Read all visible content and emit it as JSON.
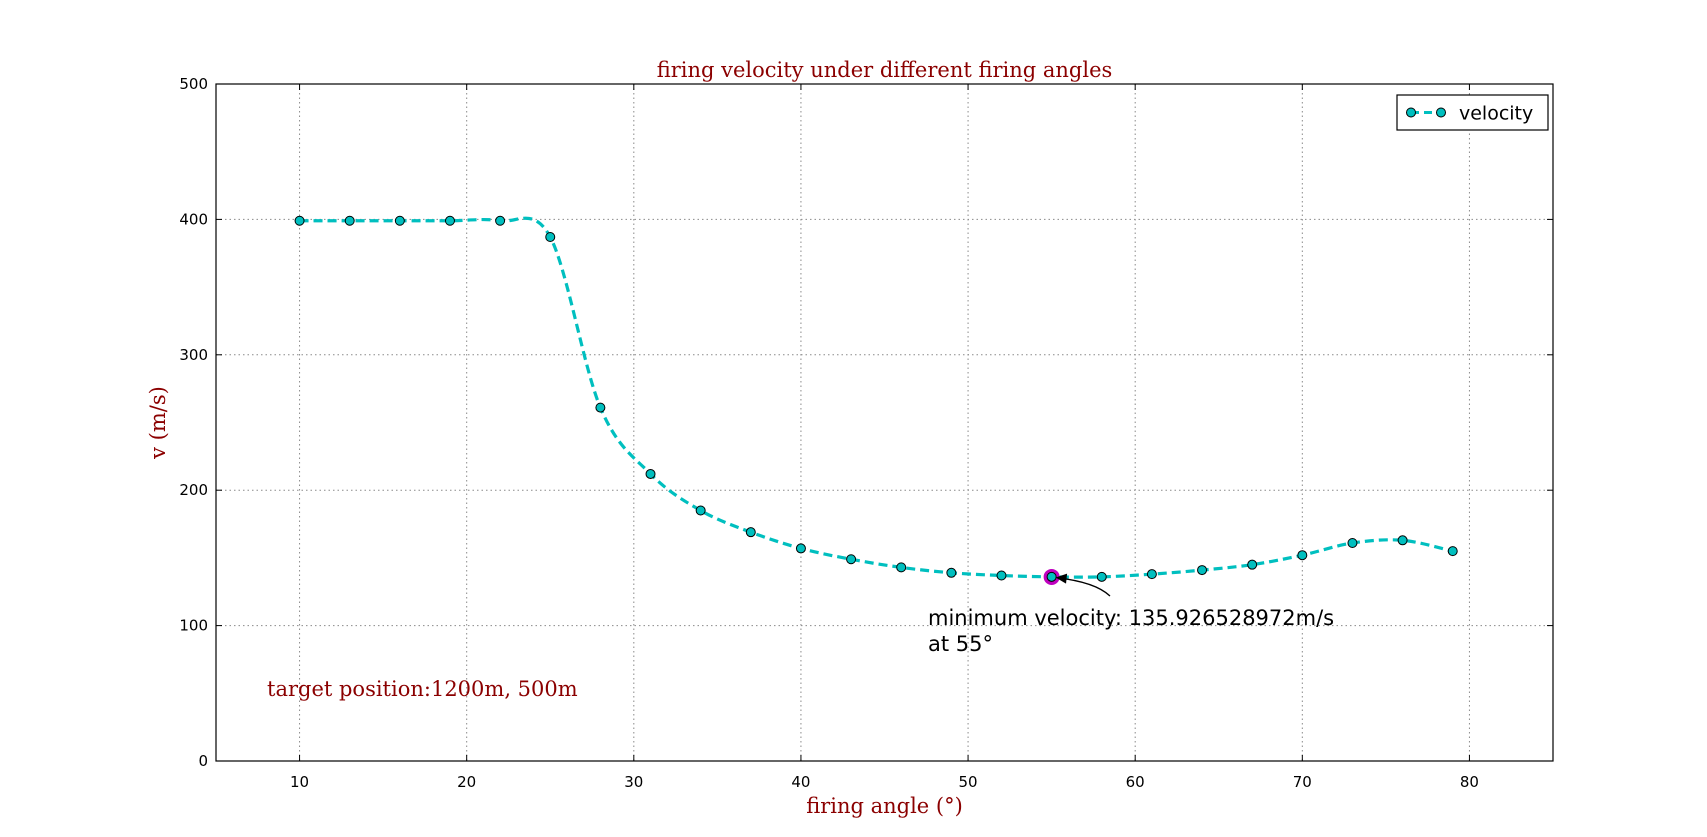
{
  "chart_data": {
    "type": "line",
    "title": "firing velocity under different firing angles",
    "xlabel": "firing angle (°)",
    "ylabel": "v (m/s)",
    "xlim": [
      5,
      85
    ],
    "ylim": [
      0,
      500
    ],
    "x_ticks": [
      10,
      20,
      30,
      40,
      50,
      60,
      70,
      80
    ],
    "y_ticks": [
      0,
      100,
      200,
      300,
      400,
      500
    ],
    "grid": true,
    "legend": {
      "position": "top-right",
      "entries": [
        "velocity"
      ]
    },
    "series": [
      {
        "name": "velocity",
        "color": "#00bfbf",
        "style": "dashed-with-circle-markers",
        "x": [
          10,
          13,
          16,
          19,
          22,
          25,
          28,
          31,
          34,
          37,
          40,
          43,
          46,
          49,
          52,
          55,
          58,
          61,
          64,
          67,
          70,
          73,
          76,
          79
        ],
        "y": [
          399,
          399,
          399,
          399,
          399,
          387,
          261,
          212,
          185,
          169,
          157,
          149,
          143,
          139,
          137,
          136,
          136,
          138,
          141,
          145,
          152,
          161,
          163,
          155
        ]
      }
    ],
    "highlight": {
      "x": 55,
      "y": 135.926528972,
      "color": "#bf00bf"
    },
    "annotations": {
      "minimum_line1": "minimum velocity: 135.926528972m/s",
      "minimum_line2": "at 55°",
      "target_text": "target position:1200m, 500m"
    },
    "text_color": "#8b0000"
  }
}
